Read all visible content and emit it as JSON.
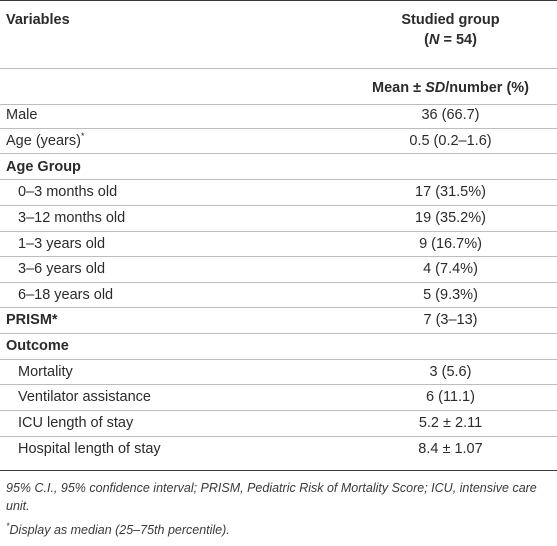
{
  "header": {
    "variables_label": "Variables",
    "group_label": "Studied group",
    "n_open": "(",
    "n_italic": "N",
    "n_close": " = 54)",
    "subheader_mean": "Mean ± ",
    "subheader_sd": "SD",
    "subheader_rest": "/number (%)"
  },
  "rows": [
    {
      "label": "Male",
      "value": "36 (66.7)"
    },
    {
      "label": "Age (years)",
      "marker": "*",
      "value": "0.5 (0.2–1.6)"
    },
    {
      "label": "Age Group",
      "value": ""
    },
    {
      "label": "0–3 months old",
      "value": "17 (31.5%)"
    },
    {
      "label": "3–12 months old",
      "value": "19 (35.2%)"
    },
    {
      "label": "1–3 years old",
      "value": "9 (16.7%)"
    },
    {
      "label": "3–6 years old",
      "value": "4 (7.4%)"
    },
    {
      "label": "6–18 years old",
      "value": "5 (9.3%)"
    },
    {
      "label": "PRISM*",
      "value": "7 (3–13)"
    },
    {
      "label": "Outcome",
      "value": ""
    },
    {
      "label": "Mortality",
      "value": "3 (5.6)"
    },
    {
      "label": "Ventilator assistance",
      "value": "6 (11.1)"
    },
    {
      "label": "ICU length of stay",
      "value": "5.2 ± 2.11"
    },
    {
      "label": "Hospital length of stay",
      "value": "8.4 ± 1.07"
    }
  ],
  "footnotes": {
    "abbreviations": "95% C.I., 95% confidence interval; PRISM, Pediatric Risk of Mortality Score; ICU, intensive care unit.",
    "marker": "*",
    "median_note": "Display as median (25–75th percentile)."
  }
}
